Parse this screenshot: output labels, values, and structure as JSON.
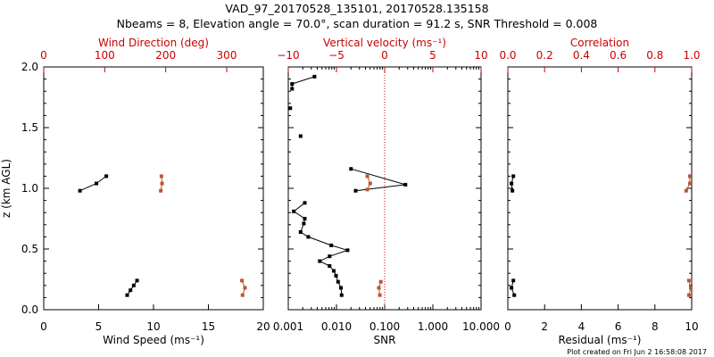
{
  "title_line1": "VAD_97_20170528_135101, 20170528.135158",
  "title_line2": "Nbeams = 8, Elevation angle = 70.0°, scan duration = 91.2 s, SNR Threshold = 0.008",
  "credit": "Plot created on Fri Jun  2 16:58:08 2017",
  "colors": {
    "black": "#000000",
    "red": "#cc0000",
    "brown": "#bb5533"
  },
  "chart_data": [
    {
      "type": "scatter",
      "panel": "wind",
      "ylabel": "z (km AGL)",
      "ylim": [
        0,
        2.0
      ],
      "yticks": [
        "0.0",
        "0.5",
        "1.0",
        "1.5",
        "2.0"
      ],
      "bottom_axis": {
        "label": "Wind Speed (ms⁻¹)",
        "lim": [
          0,
          20
        ],
        "ticks": [
          "0",
          "5",
          "10",
          "15",
          "20"
        ]
      },
      "top_axis": {
        "label": "Wind Direction (deg)",
        "lim": [
          0,
          360
        ],
        "ticks": [
          "0",
          "100",
          "200",
          "300"
        ]
      },
      "series": [
        {
          "axis": "bottom",
          "color": "black",
          "connected": true,
          "segments": [
            [
              [
                3.3,
                0.98
              ],
              [
                4.8,
                1.04
              ],
              [
                5.7,
                1.1
              ]
            ],
            [
              [
                7.6,
                0.12
              ],
              [
                7.9,
                0.16
              ],
              [
                8.2,
                0.2
              ],
              [
                8.5,
                0.24
              ]
            ]
          ]
        },
        {
          "axis": "top",
          "color": "brown",
          "connected": true,
          "segments": [
            [
              [
                192,
                0.98
              ],
              [
                194,
                1.04
              ],
              [
                193,
                1.1
              ]
            ],
            [
              [
                326,
                0.12
              ],
              [
                330,
                0.18
              ],
              [
                325,
                0.24
              ]
            ]
          ]
        }
      ]
    },
    {
      "type": "scatter",
      "panel": "snr",
      "bottom_axis": {
        "label": "SNR",
        "scale": "log",
        "lim": [
          0.001,
          10
        ],
        "ticks": [
          "0.001",
          "0.010",
          "0.100",
          "1.000",
          "10.000"
        ]
      },
      "top_axis": {
        "label": "Vertical velocity (ms⁻¹)",
        "lim": [
          -10,
          10
        ],
        "ticks": [
          "−10",
          "−5",
          "0",
          "5",
          "10"
        ],
        "reference_line": 0
      },
      "series": [
        {
          "axis": "bottom",
          "color": "black",
          "connected": true,
          "segments": [
            [
              [
                0.0035,
                1.92
              ],
              [
                0.0012,
                1.86
              ],
              [
                0.0012,
                1.82
              ]
            ],
            [
              [
                0.0011,
                1.66
              ]
            ],
            [
              [
                0.0018,
                1.43
              ]
            ],
            [
              [
                0.02,
                1.16
              ],
              [
                0.27,
                1.03
              ],
              [
                0.025,
                0.98
              ]
            ],
            [
              [
                0.0022,
                0.88
              ],
              [
                0.0013,
                0.81
              ],
              [
                0.0022,
                0.75
              ],
              [
                0.0021,
                0.71
              ],
              [
                0.0018,
                0.64
              ],
              [
                0.0026,
                0.6
              ],
              [
                0.0078,
                0.53
              ],
              [
                0.017,
                0.49
              ],
              [
                0.0072,
                0.44
              ],
              [
                0.0045,
                0.4
              ],
              [
                0.0072,
                0.36
              ],
              [
                0.0088,
                0.32
              ],
              [
                0.0098,
                0.28
              ],
              [
                0.0108,
                0.23
              ],
              [
                0.0124,
                0.18
              ],
              [
                0.0128,
                0.12
              ]
            ]
          ]
        },
        {
          "axis": "top",
          "color": "brown",
          "connected": true,
          "segments": [
            [
              [
                -1.8,
                0.99
              ],
              [
                -1.5,
                1.04
              ],
              [
                -1.8,
                1.1
              ]
            ],
            [
              [
                -0.5,
                0.12
              ],
              [
                -0.6,
                0.18
              ],
              [
                -0.4,
                0.23
              ]
            ]
          ]
        }
      ]
    },
    {
      "type": "scatter",
      "panel": "residual",
      "bottom_axis": {
        "label": "Residual (ms⁻¹)",
        "lim": [
          0,
          10
        ],
        "ticks": [
          "0",
          "2",
          "4",
          "6",
          "8",
          "10"
        ]
      },
      "top_axis": {
        "label": "Correlation",
        "lim": [
          0,
          1.0
        ],
        "ticks": [
          "0.0",
          "0.2",
          "0.4",
          "0.6",
          "0.8",
          "1.0"
        ]
      },
      "series": [
        {
          "axis": "bottom",
          "color": "black",
          "connected": true,
          "segments": [
            [
              [
                0.25,
                0.98
              ],
              [
                0.2,
                1.04
              ],
              [
                0.3,
                1.1
              ]
            ],
            [
              [
                0.35,
                0.12
              ],
              [
                0.2,
                0.18
              ],
              [
                0.3,
                0.24
              ]
            ]
          ]
        },
        {
          "axis": "top",
          "color": "brown",
          "connected": true,
          "segments": [
            [
              [
                0.97,
                0.98
              ],
              [
                0.99,
                1.04
              ],
              [
                0.99,
                1.1
              ]
            ],
            [
              [
                0.985,
                0.12
              ],
              [
                0.995,
                0.18
              ],
              [
                0.985,
                0.24
              ]
            ]
          ]
        }
      ]
    }
  ]
}
